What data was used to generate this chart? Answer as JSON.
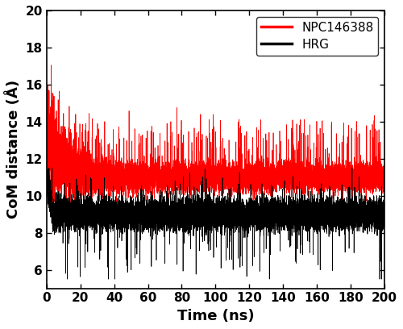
{
  "title": "",
  "xlabel": "Time (ns)",
  "ylabel": "CoM distance (Å)",
  "xlim": [
    0,
    200
  ],
  "ylim": [
    5,
    20
  ],
  "yticks": [
    6,
    8,
    10,
    12,
    14,
    16,
    18,
    20
  ],
  "xticks": [
    0,
    20,
    40,
    60,
    80,
    100,
    120,
    140,
    160,
    180,
    200
  ],
  "red_label": "NPC146388",
  "black_label": "HRG",
  "red_color": "#ff0000",
  "black_color": "#000000",
  "linewidth": 0.5,
  "legend_fontsize": 11,
  "axis_label_fontsize": 13,
  "tick_fontsize": 11,
  "n_points": 20000,
  "red_settled_mean": 11.0,
  "red_start_mean": 13.5,
  "red_decay_tau": 8.0,
  "red_base_std": 0.65,
  "red_spike_prob": 0.012,
  "red_spike_min": 1.5,
  "red_spike_max": 3.0,
  "black_mean": 9.0,
  "black_std": 0.55,
  "black_dip_prob": 0.004,
  "black_dip_min": 1.5,
  "black_dip_max": 3.5,
  "black_spike_prob": 0.005,
  "black_spike_min": 0.8,
  "black_spike_max": 2.0
}
